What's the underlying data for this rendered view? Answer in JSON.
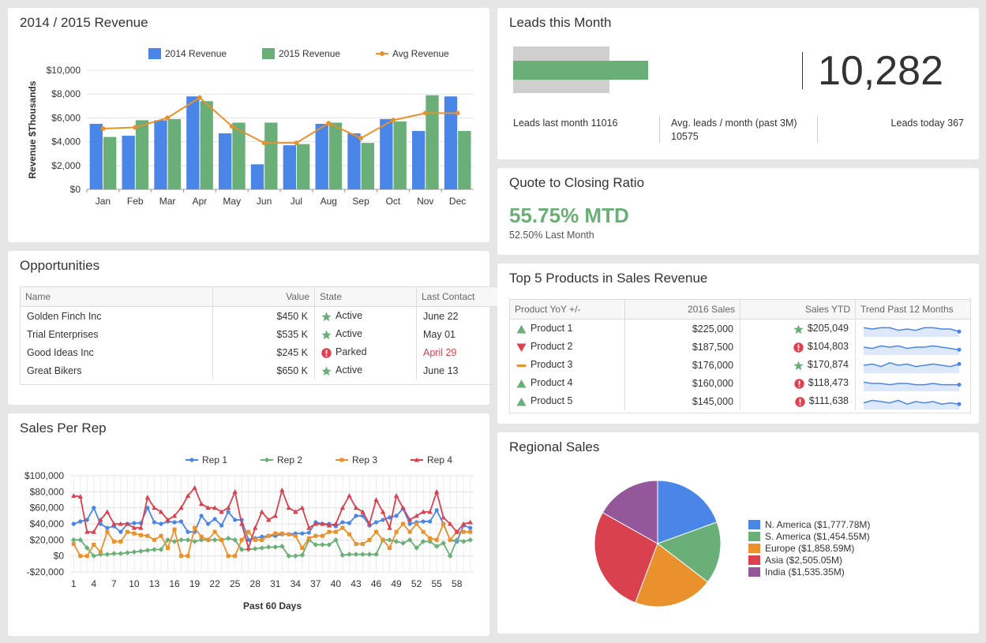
{
  "chart_data": [
    {
      "type": "bar",
      "title": "2014 / 2015 Revenue",
      "y_label": "Revenue $Thousands",
      "categories": [
        "Jan",
        "Feb",
        "Mar",
        "Apr",
        "May",
        "Jun",
        "Jul",
        "Aug",
        "Sep",
        "Oct",
        "Nov",
        "Dec"
      ],
      "series": [
        {
          "name": "2014 Revenue",
          "type": "bar",
          "color": "#4a86e8",
          "values": [
            5500,
            4500,
            5800,
            7800,
            4700,
            2100,
            3700,
            5500,
            4700,
            5900,
            4900,
            7800
          ]
        },
        {
          "name": "2015 Revenue",
          "type": "bar",
          "color": "#6aaf78",
          "values": [
            4400,
            5800,
            5900,
            7400,
            5600,
            5600,
            3800,
            5600,
            3900,
            5700,
            7900,
            4900
          ]
        },
        {
          "name": "Avg Revenue",
          "type": "line",
          "color": "#e8912d",
          "values": [
            5100,
            5200,
            6000,
            7700,
            5300,
            3900,
            3900,
            5550,
            4300,
            5800,
            6400,
            6400
          ]
        }
      ],
      "ylim": [
        0,
        10000
      ],
      "yticks": [
        {
          "value": 0,
          "label": "$0"
        },
        {
          "value": 2000,
          "label": "$2,000"
        },
        {
          "value": 4000,
          "label": "$4,000"
        },
        {
          "value": 6000,
          "label": "$6,000"
        },
        {
          "value": 8000,
          "label": "$8,000"
        },
        {
          "value": 10000,
          "label": "$10,000"
        }
      ],
      "grid": true
    },
    {
      "type": "line",
      "title": "Sales Per Rep",
      "x_label": "Past 60 Days",
      "x": [
        1,
        2,
        3,
        4,
        5,
        6,
        7,
        8,
        9,
        10,
        11,
        12,
        13,
        14,
        15,
        16,
        17,
        18,
        19,
        20,
        21,
        22,
        23,
        24,
        25,
        26,
        27,
        28,
        29,
        30,
        31,
        32,
        33,
        34,
        35,
        36,
        37,
        38,
        39,
        40,
        41,
        42,
        43,
        44,
        45,
        46,
        47,
        48,
        49,
        50,
        51,
        52,
        53,
        54,
        55,
        56,
        57,
        58,
        59,
        60
      ],
      "xlim": [
        0.5,
        60.5
      ],
      "xticks": [
        1,
        4,
        7,
        10,
        13,
        16,
        19,
        22,
        25,
        28,
        31,
        34,
        37,
        40,
        43,
        46,
        49,
        52,
        55,
        58
      ],
      "series": [
        {
          "name": "Rep 1",
          "color": "#4a86e8",
          "marker": "circle",
          "values": [
            40000,
            43000,
            45000,
            60000,
            40000,
            35000,
            37000,
            30000,
            40000,
            41000,
            41000,
            60000,
            42000,
            40000,
            43000,
            42000,
            43000,
            30000,
            30000,
            50000,
            40000,
            46000,
            38000,
            55000,
            45000,
            45000,
            20000,
            22000,
            24000,
            25000,
            25000,
            27000,
            27000,
            28000,
            28000,
            29000,
            42000,
            40000,
            40000,
            37000,
            42000,
            41000,
            50000,
            50000,
            38000,
            42000,
            45000,
            48000,
            50000,
            59000,
            40000,
            42000,
            43000,
            43000,
            57000,
            40000,
            20000,
            18000,
            38000,
            35000
          ]
        },
        {
          "name": "Rep 2",
          "color": "#6aaf78",
          "marker": "diamond",
          "values": [
            20000,
            20000,
            10000,
            0,
            2000,
            2000,
            3000,
            3000,
            4000,
            5000,
            6000,
            7000,
            8000,
            8000,
            20000,
            18000,
            20000,
            20000,
            18000,
            20000,
            20000,
            20000,
            20000,
            22000,
            20000,
            8000,
            8000,
            9000,
            10000,
            11000,
            11000,
            12000,
            0,
            0,
            1000,
            20000,
            14000,
            14000,
            14000,
            20000,
            1000,
            2000,
            2000,
            2000,
            2000,
            2000,
            20000,
            20000,
            18000,
            16000,
            20000,
            10000,
            18000,
            18000,
            12000,
            16000,
            0,
            20000,
            18000,
            20000
          ]
        },
        {
          "name": "Rep 3",
          "color": "#e8912d",
          "marker": "square",
          "values": [
            15000,
            0,
            0,
            14000,
            5000,
            30000,
            18000,
            18000,
            30000,
            28000,
            26000,
            25000,
            20000,
            25000,
            10000,
            33000,
            0,
            0,
            35000,
            24000,
            20000,
            30000,
            20000,
            0,
            0,
            20000,
            30000,
            20000,
            20000,
            25000,
            28000,
            28000,
            27000,
            25000,
            10000,
            22000,
            25000,
            25000,
            30000,
            30000,
            35000,
            27000,
            15000,
            15000,
            20000,
            30000,
            20000,
            10000,
            30000,
            40000,
            30000,
            40000,
            30000,
            22000,
            20000,
            40000,
            20000,
            30000,
            30000,
            30000
          ]
        },
        {
          "name": "Rep 4",
          "color": "#d9414f",
          "marker": "triangle",
          "values": [
            75000,
            74000,
            30000,
            30000,
            45000,
            55000,
            40000,
            40000,
            40000,
            35000,
            35000,
            73000,
            60000,
            55000,
            45000,
            50000,
            60000,
            75000,
            85000,
            65000,
            60000,
            60000,
            55000,
            60000,
            80000,
            40000,
            10000,
            35000,
            55000,
            45000,
            50000,
            82000,
            60000,
            55000,
            60000,
            35000,
            40000,
            40000,
            38000,
            40000,
            60000,
            75000,
            60000,
            55000,
            40000,
            70000,
            55000,
            35000,
            75000,
            60000,
            45000,
            50000,
            55000,
            55000,
            80000,
            48000,
            40000,
            30000,
            40000,
            42000
          ]
        }
      ],
      "ylim": [
        -20000,
        100000
      ],
      "yticks": [
        {
          "value": -20000,
          "label": "-$20,000"
        },
        {
          "value": 0,
          "label": "$0"
        },
        {
          "value": 20000,
          "label": "$20,000"
        },
        {
          "value": 40000,
          "label": "$40,000"
        },
        {
          "value": 60000,
          "label": "$60,000"
        },
        {
          "value": 80000,
          "label": "$80,000"
        },
        {
          "value": 100000,
          "label": "$100,000"
        }
      ],
      "grid": true
    },
    {
      "type": "pie",
      "title": "Regional Sales",
      "categories": [
        "N. America ($1,777.78M)",
        "S. America ($1,454.55M)",
        "Europe ($1,858.59M)",
        "Asia ($2,505.05M)",
        "India ($1,535.35M)"
      ],
      "values": [
        1777.78,
        1454.55,
        1858.59,
        2505.05,
        1535.35
      ],
      "colors": [
        "#4a86e8",
        "#6aaf78",
        "#e8912d",
        "#d9414f",
        "#93579a"
      ]
    }
  ],
  "leads": {
    "title": "Leads this Month",
    "value": 10282,
    "value_label": "10,282",
    "target": 7300,
    "xlim": [
      0,
      10500
    ],
    "stats": [
      "Leads last month 11016",
      "Avg. leads / month (past 3M) 10575",
      "Leads today 367"
    ]
  },
  "quote": {
    "title": "Quote to Closing Ratio",
    "headline": "55.75% MTD",
    "subtitle": "52.50% Last Month"
  },
  "opportunities": {
    "title": "Opportunities",
    "columns": [
      "Name",
      "Value",
      "State",
      "Last Contact"
    ],
    "rows": [
      [
        "Golden Finch Inc",
        "$450 K",
        "Active",
        "June 22"
      ],
      [
        "Trial Enterprises",
        "$535 K",
        "Active",
        "May 01"
      ],
      [
        "Good Ideas Inc",
        "$245 K",
        "Parked",
        "April 29"
      ],
      [
        "Great Bikers",
        "$650 K",
        "Active",
        "June 13"
      ]
    ]
  },
  "top5": {
    "title": "Top 5 Products in Sales Revenue",
    "columns": [
      "Product YoY +/-",
      "2016 Sales",
      "Sales YTD",
      "Trend Past 12 Months"
    ],
    "rows": [
      [
        "Product 1",
        "$225,000",
        "$205,049"
      ],
      [
        "Product 2",
        "$187,500",
        "$104,803"
      ],
      [
        "Product 3",
        "$176,000",
        "$170,874"
      ],
      [
        "Product 4",
        "$160,000",
        "$118,473"
      ],
      [
        "Product 5",
        "$145,000",
        "$111,638"
      ]
    ],
    "trend": [
      [
        6,
        5,
        6,
        6,
        4,
        5,
        4,
        6,
        6,
        5,
        5,
        3
      ],
      [
        5,
        4,
        6,
        5,
        6,
        4,
        5,
        5,
        6,
        5,
        4,
        3
      ],
      [
        5,
        6,
        4,
        7,
        5,
        6,
        4,
        5,
        6,
        5,
        4,
        6
      ],
      [
        6,
        5,
        5,
        4,
        5,
        5,
        4,
        4,
        5,
        4,
        4,
        4
      ],
      [
        4,
        6,
        5,
        4,
        6,
        3,
        5,
        4,
        5,
        3,
        4,
        3
      ]
    ],
    "trend_ylim": [
      0,
      10
    ]
  }
}
